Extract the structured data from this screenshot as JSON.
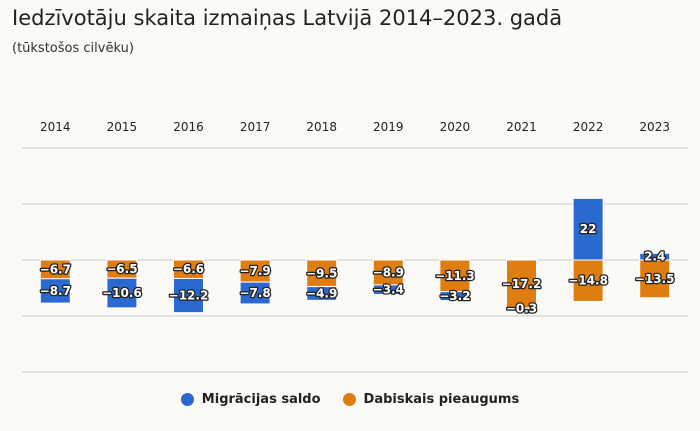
{
  "title": "Iedzīvotāju skaita izmaiņas Latvijā 2014–2023. gadā",
  "subtitle": "(tūkstošos cilvēku)",
  "colors": {
    "migration": "#2a6ad0",
    "natural": "#e07d10"
  },
  "chart_data": {
    "type": "bar",
    "stacked": true,
    "categories": [
      "2014",
      "2015",
      "2016",
      "2017",
      "2018",
      "2019",
      "2020",
      "2021",
      "2022",
      "2023"
    ],
    "series": [
      {
        "name": "Migrācijas saldo",
        "values": [
          -8.7,
          -10.6,
          -12.2,
          -7.8,
          -4.9,
          -3.4,
          -3.2,
          -0.3,
          22,
          2.4
        ]
      },
      {
        "name": "Dabiskais pieaugums",
        "values": [
          -6.7,
          -6.5,
          -6.6,
          -7.9,
          -9.5,
          -8.9,
          -11.3,
          -17.2,
          -14.8,
          -13.5
        ]
      }
    ],
    "value_labels": {
      "migration": [
        "−8.7",
        "−10.6",
        "−12.2",
        "−7.8",
        "−4.9",
        "−3.4",
        "−3.2",
        "−0.3",
        "22",
        "2.4"
      ],
      "natural": [
        "−6.7",
        "−6.5",
        "−6.6",
        "−7.9",
        "−9.5",
        "−8.9",
        "−11.3",
        "−17.2",
        "−14.8",
        "−13.5"
      ]
    },
    "ylim": [
      -40,
      40
    ],
    "grid": true,
    "x_axis_position": "top",
    "legend_position": "bottom-center"
  }
}
